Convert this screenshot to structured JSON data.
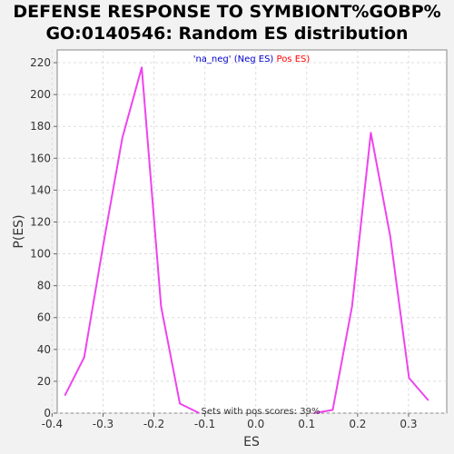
{
  "chart_data": {
    "type": "line",
    "title_line1": "DEFENSE RESPONSE TO SYMBIONT%GOBP%",
    "title_line2": "GO:0140546: Random ES distribution",
    "xlabel": "ES",
    "ylabel": "P(ES)",
    "xlim": [
      -0.39,
      0.375
    ],
    "ylim": [
      0,
      228
    ],
    "x_ticks": [
      -0.4,
      -0.3,
      -0.2,
      -0.1,
      0.0,
      0.1,
      0.2,
      0.3
    ],
    "x_tick_labels": [
      "-0.4",
      "-0.3",
      "-0.2",
      "-0.1",
      "0.0",
      "0.1",
      "0.2",
      "0.3"
    ],
    "y_ticks": [
      0,
      20,
      40,
      60,
      80,
      100,
      120,
      140,
      160,
      180,
      200,
      220
    ],
    "grid": true,
    "legend": {
      "placement": "top-center",
      "entries": [
        {
          "label": "'na_neg' (Neg ES)",
          "color": "#0000cc"
        },
        {
          "label": "Pos ES)",
          "color": "#ff0000"
        }
      ]
    },
    "annotation": "Sets with pos scores: 39%",
    "series": [
      {
        "color": "#ee44ee",
        "x": [
          -0.375,
          -0.337,
          -0.3,
          -0.262,
          -0.224,
          -0.186,
          -0.149,
          -0.111,
          0.114,
          0.151,
          0.189,
          0.226,
          0.264,
          0.301,
          0.339
        ],
        "y": [
          11,
          35,
          105,
          173,
          217,
          67,
          6,
          0,
          0,
          2,
          67,
          176,
          111,
          22,
          8
        ]
      }
    ]
  }
}
